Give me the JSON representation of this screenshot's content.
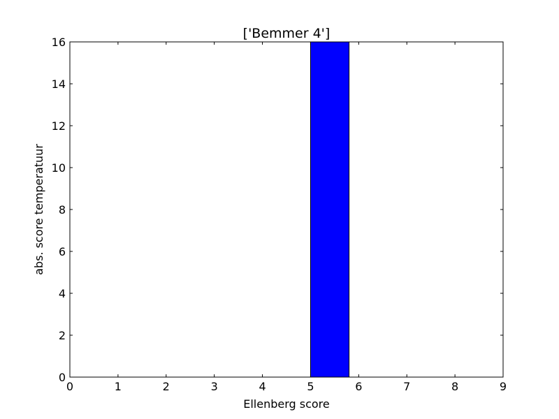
{
  "chart_data": {
    "type": "bar",
    "title": "['Bemmer 4']",
    "xlabel": "Ellenberg score",
    "ylabel": "abs. score temperatuur",
    "xlim": [
      0,
      9
    ],
    "ylim": [
      0,
      16
    ],
    "xticks": [
      0,
      1,
      2,
      3,
      4,
      5,
      6,
      7,
      8,
      9
    ],
    "yticks": [
      0,
      2,
      4,
      6,
      8,
      10,
      12,
      14,
      16
    ],
    "bin_width": 0.8,
    "bins": [
      0,
      1,
      2,
      3,
      4,
      5,
      6,
      7,
      8
    ],
    "values": [
      0,
      0,
      0,
      0,
      0,
      16,
      0,
      0,
      0
    ],
    "bar_color": "#0000ff",
    "edge_color": "#000000",
    "grid": false
  }
}
